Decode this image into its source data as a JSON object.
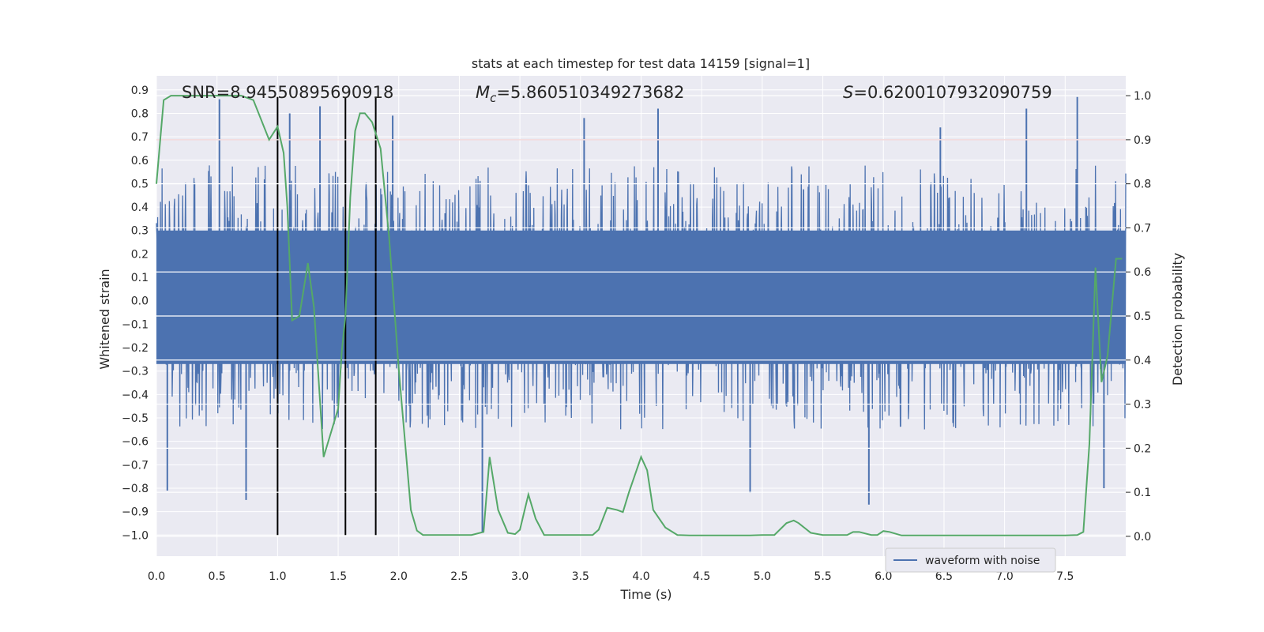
{
  "chart_data": {
    "type": "line",
    "title": "stats at each timestep for test data 14159 [signal=1]",
    "xlabel": "Time (s)",
    "ylabel_left": "Whitened strain",
    "ylabel_right": "Detection probability",
    "xlim": [
      0.0,
      8.0
    ],
    "ylim_left": [
      -1.09,
      0.96
    ],
    "ylim_right": [
      -0.045,
      1.045
    ],
    "x_ticks": [
      "0.0",
      "0.5",
      "1.0",
      "1.5",
      "2.0",
      "2.5",
      "3.0",
      "3.5",
      "4.0",
      "4.5",
      "5.0",
      "5.5",
      "6.0",
      "6.5",
      "7.0",
      "7.5"
    ],
    "y_left_ticks": [
      "0.9",
      "0.8",
      "0.7",
      "0.6",
      "0.5",
      "0.4",
      "0.3",
      "0.2",
      "0.1",
      "0.0",
      "−0.1",
      "−0.2",
      "−0.3",
      "−0.4",
      "−0.5",
      "−0.6",
      "−0.7",
      "−0.8",
      "−0.9",
      "−1.0"
    ],
    "y_right_ticks": [
      "0.0",
      "0.1",
      "0.2",
      "0.3",
      "0.4",
      "0.5",
      "0.6",
      "0.7",
      "0.8",
      "0.9",
      "1.0"
    ],
    "grid": true,
    "legend": {
      "position": "bottom-right",
      "entries": [
        "waveform with noise"
      ]
    },
    "annotations": {
      "snr": "SNR=8.94550895690918",
      "mc_symbol": "M",
      "mc_sub": "c",
      "mc_value": "=5.860510349273682",
      "s_symbol": "S",
      "s_value": "=0.6200107932090759"
    },
    "threshold_line": {
      "value_right": 0.9,
      "color": "#c44e52"
    },
    "vertical_lines": {
      "x": [
        1.0,
        1.56,
        1.81
      ],
      "y_bottom": -1.0,
      "y_top": 0.87,
      "color": "#000000"
    },
    "waveform": {
      "name": "waveform with noise",
      "color": "#4c72b0",
      "x_range": [
        0.0,
        8.0
      ],
      "dense_band_left": [
        -0.27,
        0.3
      ],
      "typical_peak_left": [
        -0.55,
        0.58
      ],
      "spikes": [
        {
          "x": 0.09,
          "y": -0.81
        },
        {
          "x": 0.52,
          "y": 0.86
        },
        {
          "x": 0.74,
          "y": -0.85
        },
        {
          "x": 1.1,
          "y": 0.8
        },
        {
          "x": 1.35,
          "y": 0.83
        },
        {
          "x": 1.95,
          "y": 0.79
        },
        {
          "x": 2.69,
          "y": -0.99
        },
        {
          "x": 3.53,
          "y": 0.78
        },
        {
          "x": 4.14,
          "y": 0.82
        },
        {
          "x": 4.9,
          "y": -0.82
        },
        {
          "x": 5.88,
          "y": -0.87
        },
        {
          "x": 6.47,
          "y": 0.74
        },
        {
          "x": 7.18,
          "y": 0.82
        },
        {
          "x": 7.6,
          "y": 0.87
        },
        {
          "x": 7.82,
          "y": -0.8
        }
      ]
    },
    "detection_probability": {
      "name": "Detection probability",
      "color": "#55a868",
      "x": [
        0.0,
        0.06,
        0.12,
        0.2,
        0.3,
        0.5,
        0.7,
        0.8,
        0.93,
        1.0,
        1.05,
        1.08,
        1.12,
        1.18,
        1.25,
        1.3,
        1.38,
        1.5,
        1.53,
        1.56,
        1.6,
        1.64,
        1.68,
        1.72,
        1.78,
        1.85,
        1.92,
        2.0,
        2.1,
        2.15,
        2.2,
        2.3,
        2.4,
        2.5,
        2.6,
        2.7,
        2.75,
        2.82,
        2.9,
        2.96,
        3.0,
        3.07,
        3.13,
        3.2,
        3.3,
        3.4,
        3.5,
        3.6,
        3.65,
        3.72,
        3.8,
        3.85,
        3.9,
        3.95,
        4.0,
        4.05,
        4.1,
        4.2,
        4.3,
        4.4,
        4.5,
        4.7,
        4.9,
        5.0,
        5.1,
        5.2,
        5.26,
        5.3,
        5.4,
        5.5,
        5.6,
        5.7,
        5.75,
        5.8,
        5.9,
        5.95,
        6.0,
        6.05,
        6.15,
        6.3,
        6.5,
        6.8,
        7.0,
        7.2,
        7.4,
        7.5,
        7.6,
        7.65,
        7.7,
        7.75,
        7.8,
        7.85,
        7.92,
        7.97
      ],
      "values": [
        0.8,
        0.99,
        1.0,
        1.0,
        1.0,
        1.0,
        1.0,
        0.99,
        0.9,
        0.93,
        0.87,
        0.75,
        0.49,
        0.5,
        0.62,
        0.52,
        0.18,
        0.29,
        0.42,
        0.5,
        0.77,
        0.92,
        0.96,
        0.96,
        0.94,
        0.88,
        0.68,
        0.38,
        0.06,
        0.013,
        0.003,
        0.003,
        0.003,
        0.003,
        0.003,
        0.01,
        0.18,
        0.06,
        0.008,
        0.005,
        0.015,
        0.095,
        0.04,
        0.003,
        0.003,
        0.003,
        0.003,
        0.003,
        0.015,
        0.065,
        0.06,
        0.055,
        0.1,
        0.14,
        0.18,
        0.15,
        0.06,
        0.02,
        0.003,
        0.002,
        0.002,
        0.002,
        0.002,
        0.003,
        0.003,
        0.03,
        0.036,
        0.03,
        0.008,
        0.003,
        0.003,
        0.003,
        0.01,
        0.01,
        0.003,
        0.003,
        0.012,
        0.01,
        0.002,
        0.002,
        0.002,
        0.002,
        0.002,
        0.002,
        0.002,
        0.002,
        0.003,
        0.01,
        0.21,
        0.61,
        0.35,
        0.41,
        0.63,
        0.63
      ]
    }
  }
}
